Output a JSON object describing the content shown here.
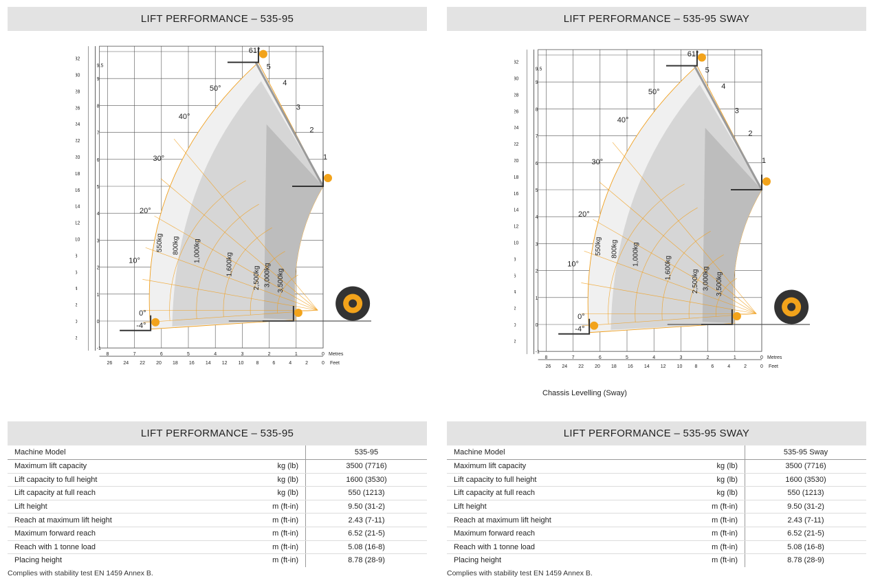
{
  "panels": [
    {
      "header": "LIFT PERFORMANCE – 535-95",
      "caption": "",
      "chart": {
        "angles": [
          "61°",
          "50°",
          "40°",
          "30°",
          "20°",
          "10°",
          "0°",
          "-4°"
        ],
        "extensions": [
          "5",
          "4",
          "3",
          "2",
          "1"
        ],
        "capacities": [
          "550kg",
          "800kg",
          "1,000kg",
          "1,600kg",
          "2,500kg",
          "3,000kg",
          "3,500kg"
        ],
        "metres_axis_left": [
          "9.5",
          "9",
          "8",
          "7",
          "6",
          "5",
          "4",
          "3",
          "2",
          "1",
          "0",
          "-1"
        ],
        "feet_axis_left": [
          "32",
          "30",
          "28",
          "26",
          "24",
          "22",
          "20",
          "18",
          "16",
          "14",
          "12",
          "10",
          "8",
          "6",
          "4",
          "2",
          "0",
          "2"
        ],
        "metres_axis_bottom": [
          "8",
          "7",
          "6",
          "5",
          "4",
          "3",
          "2",
          "1",
          "0"
        ],
        "feet_axis_bottom": [
          "26",
          "24",
          "22",
          "20",
          "18",
          "16",
          "14",
          "12",
          "10",
          "8",
          "6",
          "4",
          "2",
          "0"
        ],
        "metres_unit": "Metres",
        "feet_unit": "Feet"
      }
    },
    {
      "header": "LIFT PERFORMANCE – 535-95 SWAY",
      "caption": "Chassis Levelling (Sway)",
      "chart": {
        "angles": [
          "61°",
          "50°",
          "40°",
          "30°",
          "20°",
          "10°",
          "0°",
          "-4°"
        ],
        "extensions": [
          "5",
          "4",
          "3",
          "2",
          "1"
        ],
        "capacities": [
          "550kg",
          "800kg",
          "1,000kg",
          "1,600kg",
          "2,500kg",
          "3,000kg",
          "3,500kg"
        ],
        "metres_axis_left": [
          "9.5",
          "9",
          "8",
          "7",
          "6",
          "5",
          "4",
          "3",
          "2",
          "1",
          "0",
          "-1"
        ],
        "feet_axis_left": [
          "32",
          "30",
          "28",
          "26",
          "24",
          "22",
          "20",
          "18",
          "16",
          "14",
          "12",
          "10",
          "8",
          "6",
          "4",
          "2",
          "0",
          "2"
        ],
        "metres_axis_bottom": [
          "8",
          "7",
          "6",
          "5",
          "4",
          "3",
          "2",
          "1",
          "0"
        ],
        "feet_axis_bottom": [
          "26",
          "24",
          "22",
          "20",
          "18",
          "16",
          "14",
          "12",
          "10",
          "8",
          "6",
          "4",
          "2",
          "0"
        ],
        "metres_unit": "Metres",
        "feet_unit": "Feet"
      }
    }
  ],
  "tables": [
    {
      "header": "LIFT PERFORMANCE – 535-95",
      "column_header": "Machine Model",
      "model": "535-95",
      "rows": [
        {
          "label": "Maximum lift capacity",
          "unit": "kg (lb)",
          "value": "3500 (7716)"
        },
        {
          "label": "Lift capacity to full height",
          "unit": "kg (lb)",
          "value": "1600 (3530)"
        },
        {
          "label": "Lift capacity at full reach",
          "unit": "kg (lb)",
          "value": "550 (1213)"
        },
        {
          "label": "Lift height",
          "unit": "m (ft-in)",
          "value": "9.50 (31-2)"
        },
        {
          "label": "Reach at maximum lift height",
          "unit": "m (ft-in)",
          "value": "2.43 (7-11)"
        },
        {
          "label": "Maximum forward reach",
          "unit": "m (ft-in)",
          "value": "6.52 (21-5)"
        },
        {
          "label": "Reach with 1 tonne load",
          "unit": "m (ft-in)",
          "value": "5.08 (16-8)"
        },
        {
          "label": "Placing height",
          "unit": "m (ft-in)",
          "value": "8.78 (28-9)"
        }
      ],
      "note": "Complies with stability test EN 1459 Annex B."
    },
    {
      "header": "LIFT PERFORMANCE – 535-95 SWAY",
      "column_header": "Machine Model",
      "model": "535-95 Sway",
      "rows": [
        {
          "label": "Maximum lift capacity",
          "unit": "kg (lb)",
          "value": "3500 (7716)"
        },
        {
          "label": "Lift capacity to full height",
          "unit": "kg (lb)",
          "value": "1600 (3530)"
        },
        {
          "label": "Lift capacity at full reach",
          "unit": "kg (lb)",
          "value": "550 (1213)"
        },
        {
          "label": "Lift height",
          "unit": "m (ft-in)",
          "value": "9.50 (31-2)"
        },
        {
          "label": "Reach at maximum lift height",
          "unit": "m (ft-in)",
          "value": "2.43 (7-11)"
        },
        {
          "label": "Maximum forward reach",
          "unit": "m (ft-in)",
          "value": "6.52 (21-5)"
        },
        {
          "label": "Reach with 1 tonne load",
          "unit": "m (ft-in)",
          "value": "5.08 (16-8)"
        },
        {
          "label": "Placing height",
          "unit": "m (ft-in)",
          "value": "8.78 (28-9)"
        }
      ],
      "note": "Complies with stability test EN 1459 Annex B."
    }
  ],
  "colors": {
    "header_bg": "#e3e3e3",
    "envelope_orange": "#f0a020",
    "zone_light": "#f0f0f0",
    "zone_mid": "#d6d6d6",
    "zone_dark": "#bdbdbd",
    "grid": "#555555",
    "boom": "#9a9a9a",
    "fork": "#333333",
    "operator": "#f2a31b"
  },
  "icons": [
    "forklift-operator-icon",
    "wheel-icon"
  ]
}
